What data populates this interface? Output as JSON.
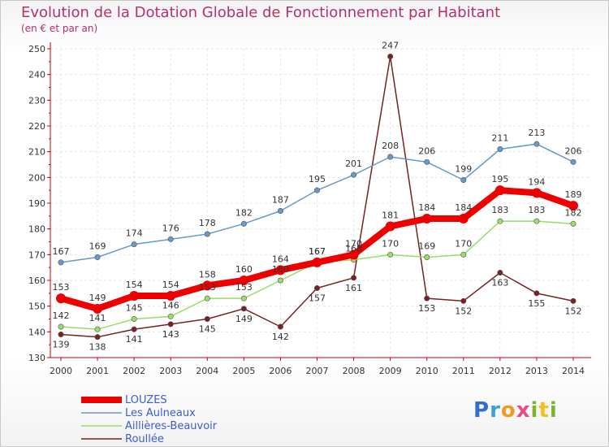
{
  "title": "Evolution de la Dotation Globale de Fonctionnement par Habitant",
  "subtitle": "(en € et par an)",
  "logo_text": "Proxiti",
  "colors": {
    "title": "#b5306f",
    "axis": "#cc0000",
    "grid": "#e6e6e6",
    "legend_text": "#3a5fcd"
  },
  "chart_data": {
    "type": "line",
    "title": "Evolution de la Dotation Globale de Fonctionnement par Habitant",
    "subtitle": "(en € et par an)",
    "xlabel": "",
    "ylabel": "",
    "categories": [
      "2000",
      "2001",
      "2002",
      "2003",
      "2004",
      "2005",
      "2006",
      "2007",
      "2008",
      "2009",
      "2010",
      "2011",
      "2012",
      "2013",
      "2014"
    ],
    "ylim": [
      130,
      250
    ],
    "yticks": [
      130,
      140,
      150,
      160,
      170,
      180,
      190,
      200,
      210,
      220,
      230,
      240,
      250
    ],
    "grid": "horizontal dashed",
    "legend_position": "bottom-left",
    "series": [
      {
        "name": "LOUZES",
        "color": "#ee0000",
        "values": [
          153,
          149,
          154,
          154,
          158,
          160,
          164,
          167,
          170,
          181,
          184,
          184,
          195,
          194,
          189
        ]
      },
      {
        "name": "Les Aulneaux",
        "color": "#6699cc",
        "values": [
          167,
          169,
          174,
          176,
          178,
          182,
          187,
          195,
          201,
          208,
          206,
          199,
          211,
          213,
          206
        ]
      },
      {
        "name": "Aillières-Beauvoir",
        "color": "#99dd66",
        "values": [
          142,
          141,
          145,
          146,
          153,
          153,
          160,
          167,
          168,
          170,
          169,
          170,
          183,
          183,
          182
        ]
      },
      {
        "name": "Roullée",
        "color": "#772222",
        "values": [
          139,
          138,
          141,
          143,
          145,
          149,
          142,
          157,
          161,
          247,
          153,
          152,
          163,
          155,
          152
        ]
      }
    ]
  }
}
